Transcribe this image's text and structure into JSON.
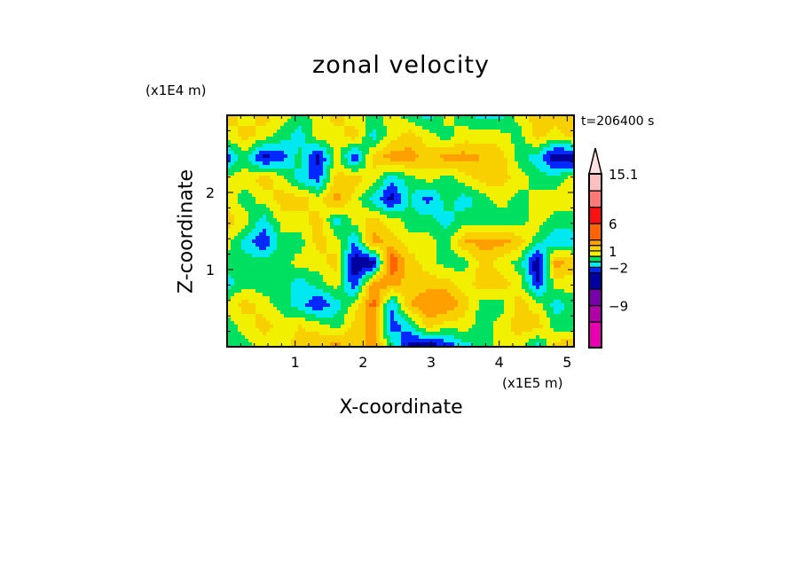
{
  "chart_data": {
    "type": "heatmap",
    "title": "zonal velocity",
    "xlabel": "X-coordinate",
    "ylabel": "Z-coordinate",
    "x_unit_label": "(x1E5 m)",
    "z_unit_label": "(x1E4 m)",
    "time_label": "t=206400 s",
    "xlim": [
      0,
      5.1
    ],
    "zlim": [
      0,
      3.0
    ],
    "x_ticks": [
      "1",
      "2",
      "3",
      "4",
      "5"
    ],
    "z_ticks": [
      "1",
      "2"
    ],
    "colorbar": {
      "range": [
        -16.7,
        15.1
      ],
      "labels": [
        "15.1",
        "6",
        "1",
        "-2",
        "-9"
      ],
      "label_values": [
        15.1,
        6,
        1,
        -2,
        -9
      ],
      "levels": [
        -12,
        -9,
        -6,
        -3,
        -2,
        -1,
        0,
        1,
        2,
        3,
        6,
        9,
        12,
        15.1
      ],
      "colors": [
        "#e800b0",
        "#b000a8",
        "#7800a8",
        "#0000a0",
        "#0028ff",
        "#00e8f0",
        "#00e060",
        "#f0f000",
        "#f8d000",
        "#ffa000",
        "#ff6400",
        "#ff1010",
        "#ff7878",
        "#ffc0c0",
        "#ffe0e0"
      ]
    },
    "grid_note": "approximate coarse field, rows from z=3 (top) to z=0, columns x=0..5.1",
    "values": [
      [
        1.5,
        0.5,
        1.5,
        0.5,
        -0.5,
        0.5,
        1.5,
        0.5,
        -0.5,
        0.5,
        -0.5,
        -1.5,
        0.5,
        -0.5,
        -1.5,
        -1.5,
        0.5,
        1.5,
        1.5,
        1.5
      ],
      [
        0.5,
        1.5,
        0.5,
        -0.5,
        -1.5,
        0.5,
        0.5,
        1.5,
        -1.5,
        0.5,
        1.5,
        0.5,
        -0.5,
        0.5,
        0.5,
        0.5,
        -0.5,
        1.5,
        0.5,
        1.5
      ],
      [
        -2.5,
        -0.5,
        -3.5,
        -2.5,
        -0.5,
        -3.5,
        0.5,
        -3,
        1.5,
        2.5,
        2.5,
        1.5,
        2.5,
        2.5,
        2,
        1.5,
        -0.5,
        -1.5,
        -4,
        -4
      ],
      [
        0.5,
        0.5,
        1.5,
        0.5,
        -1.5,
        -2.5,
        1.5,
        1.5,
        0.5,
        -1.5,
        -0.5,
        0.5,
        -0.5,
        0.5,
        1.5,
        1.5,
        0.5,
        -0.5,
        -0.5,
        0.5
      ],
      [
        0.5,
        -0.5,
        0.5,
        1.5,
        1.5,
        0.5,
        2.5,
        0.5,
        -1.5,
        -3.5,
        -1,
        -2.5,
        -0.5,
        -1.5,
        -0.5,
        0.5,
        -0.5,
        0.5,
        0.5,
        0.5
      ],
      [
        1.5,
        0.5,
        -1.5,
        0.5,
        0.5,
        1.5,
        -1.5,
        0.5,
        1.5,
        0.5,
        -0.5,
        -0.5,
        -1.5,
        -0.5,
        -1,
        -0.5,
        -0.5,
        0.5,
        -0.5,
        -0.5
      ],
      [
        0.5,
        -1.5,
        -3,
        -0.5,
        -0.5,
        1.5,
        0.5,
        -2,
        2.5,
        1.5,
        0.5,
        0.5,
        -0.5,
        2,
        2.5,
        2.5,
        1.5,
        -0.5,
        -2,
        -1.5
      ],
      [
        -0.5,
        -0.5,
        -0.5,
        -0.5,
        0.5,
        0.5,
        1.5,
        -4,
        -4,
        4,
        1.5,
        0.5,
        -0.5,
        -0.5,
        1.5,
        0.5,
        -0.5,
        -4,
        2.5,
        1.5
      ],
      [
        -1.5,
        -0.5,
        -0.5,
        -0.5,
        -1.5,
        -0.5,
        0.5,
        -3,
        2.5,
        2.5,
        1.5,
        1.5,
        1.5,
        0.5,
        1.5,
        1.5,
        0.5,
        -3,
        0.5,
        0.5
      ],
      [
        0.5,
        1.5,
        0.5,
        -0.5,
        -1.5,
        -3,
        -1.5,
        0.5,
        3.5,
        -2,
        2,
        3,
        3,
        1.5,
        -0.5,
        -0.5,
        1.5,
        0.5,
        -1.5,
        -0.5
      ],
      [
        -0.5,
        0.5,
        1.5,
        0.5,
        1,
        0.5,
        -0.5,
        1.5,
        2.5,
        -2.5,
        -1.5,
        1.5,
        0.5,
        0.5,
        -0.5,
        0.5,
        1.5,
        1.5,
        -0.5,
        -0.5
      ],
      [
        -0.5,
        -0.5,
        0.5,
        0.5,
        1.5,
        2,
        2.5,
        1.5,
        2.5,
        -0.5,
        -3.5,
        -4,
        -3,
        -1.5,
        -0.5,
        0.5,
        0.5,
        -1.5,
        1.5,
        2
      ]
    ]
  }
}
